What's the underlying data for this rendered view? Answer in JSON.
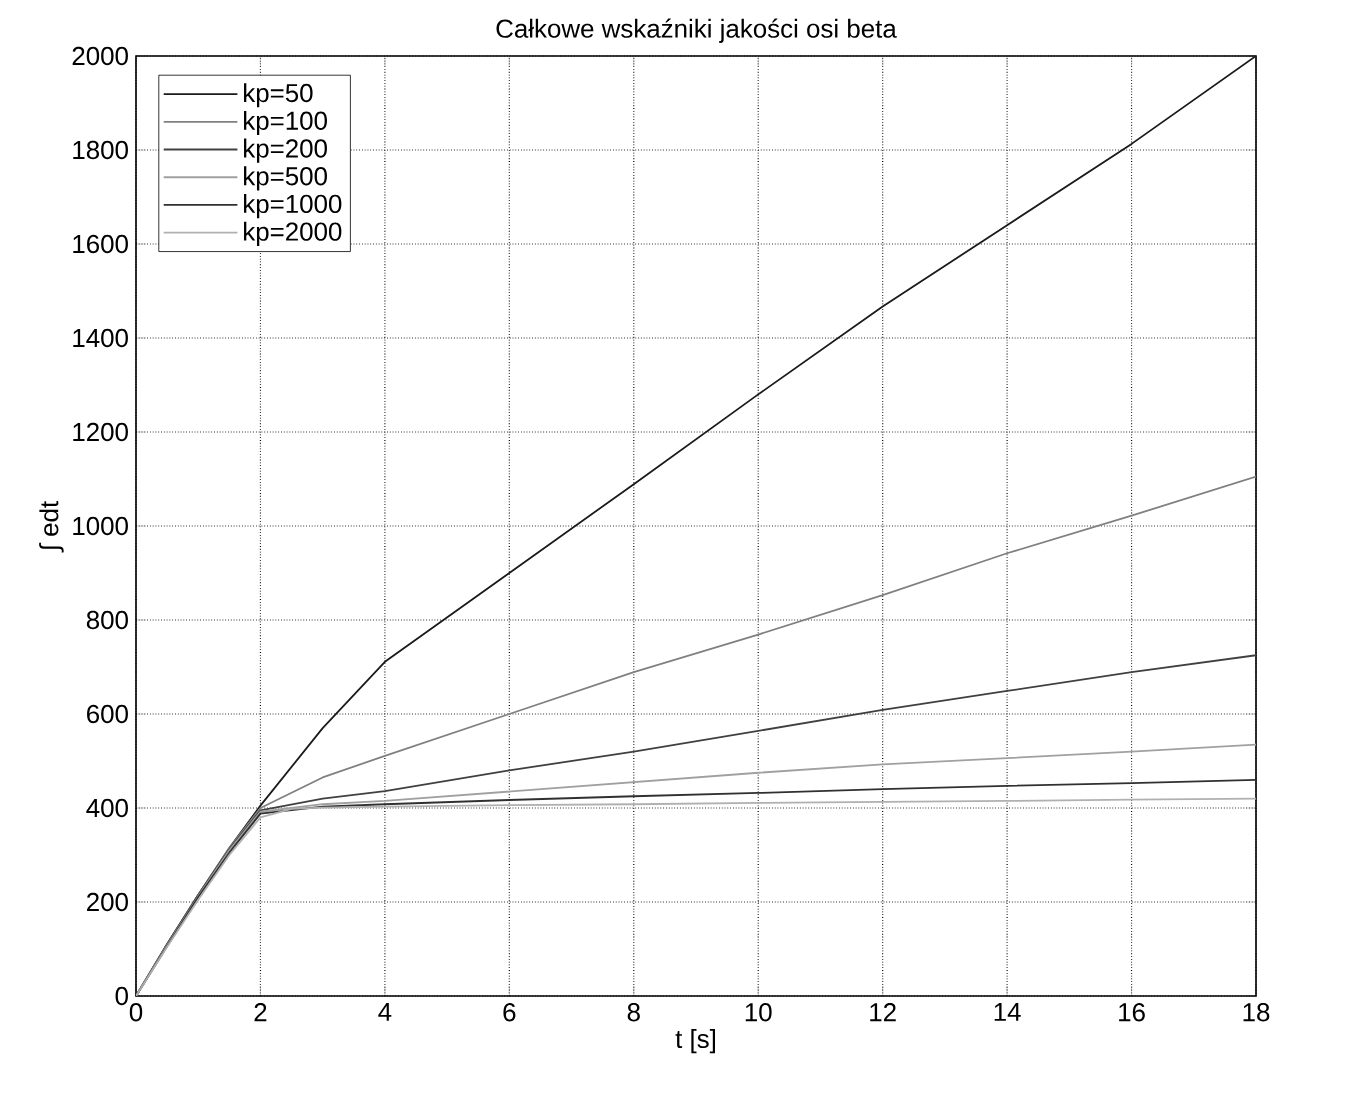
{
  "chart_data": {
    "type": "line",
    "title": "Całkowe wskaźniki jakości osi beta",
    "xlabel": "t [s]",
    "ylabel": "∫ edt",
    "xlim": [
      0,
      18
    ],
    "ylim": [
      0,
      2000
    ],
    "xticks": [
      0,
      2,
      4,
      6,
      8,
      10,
      12,
      14,
      16,
      18
    ],
    "yticks": [
      0,
      200,
      400,
      600,
      800,
      1000,
      1200,
      1400,
      1600,
      1800,
      2000
    ],
    "grid": true,
    "legend": "top left",
    "marker": "none",
    "line_style": "solid",
    "series": [
      {
        "name": "kp=50",
        "color": "#1a1a1a",
        "x": [
          0,
          0.5,
          1,
          1.5,
          2,
          3,
          4,
          6,
          8,
          10,
          12,
          14,
          16,
          18
        ],
        "values": [
          0,
          110,
          215,
          315,
          405,
          570,
          711,
          900,
          1089,
          1280,
          1467,
          1640,
          1813,
          2000
        ]
      },
      {
        "name": "kp=100",
        "color": "#808080",
        "x": [
          0,
          0.5,
          1,
          1.5,
          2,
          3,
          4,
          6,
          8,
          10,
          12,
          14,
          16,
          18
        ],
        "values": [
          0,
          110,
          215,
          315,
          400,
          465,
          511,
          600,
          689,
          769,
          853,
          942,
          1022,
          1105
        ]
      },
      {
        "name": "kp=200",
        "color": "#404040",
        "x": [
          0,
          0.5,
          1,
          1.5,
          2,
          3,
          4,
          6,
          8,
          10,
          12,
          14,
          16,
          18
        ],
        "values": [
          0,
          110,
          215,
          312,
          395,
          420,
          436,
          480,
          520,
          564,
          609,
          649,
          689,
          725
        ]
      },
      {
        "name": "kp=500",
        "color": "#a0a0a0",
        "x": [
          0,
          0.5,
          1,
          1.5,
          2,
          3,
          4,
          6,
          8,
          10,
          12,
          14,
          16,
          18
        ],
        "values": [
          0,
          108,
          212,
          310,
          392,
          408,
          415,
          435,
          455,
          475,
          493,
          506,
          520,
          535
        ]
      },
      {
        "name": "kp=1000",
        "color": "#303030",
        "x": [
          0,
          0.5,
          1,
          1.5,
          2,
          3,
          4,
          6,
          8,
          10,
          12,
          14,
          16,
          18
        ],
        "values": [
          0,
          106,
          210,
          305,
          388,
          403,
          408,
          417,
          425,
          432,
          440,
          447,
          453,
          460
        ]
      },
      {
        "name": "kp=2000",
        "color": "#b0b0b0",
        "x": [
          0,
          0.5,
          1,
          1.5,
          2,
          2.5,
          3,
          4,
          6,
          8,
          10,
          12,
          14,
          16,
          18
        ],
        "values": [
          0,
          105,
          205,
          300,
          380,
          398,
          401,
          403,
          406,
          408,
          411,
          413,
          415,
          418,
          420
        ]
      }
    ]
  }
}
